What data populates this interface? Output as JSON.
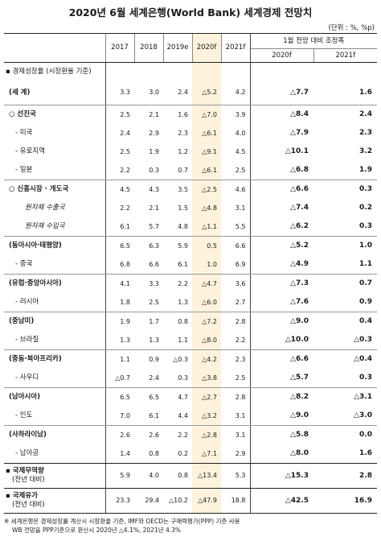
{
  "title": "2020년 6월 세계은행(World Bank) 세계경제 전망치",
  "unit": "(단위 : %, %p)",
  "headers": {
    "years": [
      "2017",
      "2018",
      "2019e",
      "2020f",
      "2021f"
    ],
    "adj_group": "1월 전망 대비 조정폭",
    "adj_years": [
      "2020f",
      "2021f"
    ]
  },
  "section_gdp": "▪ 경제성장률 (시장환율 기준)",
  "rows": [
    {
      "label": "(세  계)",
      "style": "bold",
      "values": [
        "3.3",
        "3.0",
        "2.4",
        "△5.2",
        "4.2"
      ],
      "adj": [
        "△7.7",
        "1.6"
      ]
    },
    {
      "label": "○ 선진국",
      "style": "bold",
      "values": [
        "2.5",
        "2.1",
        "1.6",
        "△7.0",
        "3.9"
      ],
      "adj": [
        "△8.4",
        "2.4"
      ]
    },
    {
      "label": "- 미국",
      "style": "sub",
      "values": [
        "2.4",
        "2.9",
        "2.3",
        "△6.1",
        "4.0"
      ],
      "adj": [
        "△7.9",
        "2.3"
      ]
    },
    {
      "label": "- 유로지역",
      "style": "sub",
      "values": [
        "2.5",
        "1.9",
        "1.2",
        "△9.1",
        "4.5"
      ],
      "adj": [
        "△10.1",
        "3.2"
      ]
    },
    {
      "label": "- 일본",
      "style": "sub",
      "values": [
        "2.2",
        "0.3",
        "0.7",
        "△6.1",
        "2.5"
      ],
      "adj": [
        "△6.8",
        "1.9"
      ]
    },
    {
      "label": "○ 신흥시장 · 개도국",
      "style": "bold",
      "values": [
        "4.5",
        "4.3",
        "3.5",
        "△2.5",
        "4.6"
      ],
      "adj": [
        "△6.6",
        "0.3"
      ]
    },
    {
      "label": "원자재 수출국",
      "style": "ital",
      "values": [
        "2.2",
        "2.1",
        "1.5",
        "△4.8",
        "3.1"
      ],
      "adj": [
        "△7.4",
        "0.2"
      ]
    },
    {
      "label": "원자재 수입국",
      "style": "ital",
      "values": [
        "6.1",
        "5.7",
        "4.8",
        "△1.1",
        "5.5"
      ],
      "adj": [
        "△6.2",
        "0.3"
      ]
    },
    {
      "label": "(동아시아·태평양)",
      "style": "bold",
      "values": [
        "6.5",
        "6.3",
        "5.9",
        "0.5",
        "6.6"
      ],
      "adj": [
        "△5.2",
        "1.0"
      ]
    },
    {
      "label": "- 중국",
      "style": "sub",
      "values": [
        "6.8",
        "6.6",
        "6.1",
        "1.0",
        "6.9"
      ],
      "adj": [
        "△4.9",
        "1.1"
      ]
    },
    {
      "label": "(유럽·중앙아시아)",
      "style": "bold",
      "values": [
        "4.1",
        "3.3",
        "2.2",
        "△4.7",
        "3.6"
      ],
      "adj": [
        "△7.3",
        "0.7"
      ]
    },
    {
      "label": "- 러시아",
      "style": "sub",
      "values": [
        "1.8",
        "2.5",
        "1.3",
        "△6.0",
        "2.7"
      ],
      "adj": [
        "△7.6",
        "0.9"
      ]
    },
    {
      "label": "(중남미)",
      "style": "bold",
      "values": [
        "1.9",
        "1.7",
        "0.8",
        "△7.2",
        "2.8"
      ],
      "adj": [
        "△9.0",
        "0.4"
      ]
    },
    {
      "label": "- 브라질",
      "style": "sub",
      "values": [
        "1.3",
        "1.3",
        "1.1",
        "△8.0",
        "2.2"
      ],
      "adj": [
        "△10.0",
        "△0.3"
      ]
    },
    {
      "label": "(중동·북아프리카)",
      "style": "bold",
      "values": [
        "1.1",
        "0.9",
        "△0.3",
        "△4.2",
        "2.3"
      ],
      "adj": [
        "△6.6",
        "△0.4"
      ]
    },
    {
      "label": "- 사우디",
      "style": "sub",
      "values": [
        "△0.7",
        "2.4",
        "0.3",
        "△3.8",
        "2.5"
      ],
      "adj": [
        "△5.7",
        "0.3"
      ]
    },
    {
      "label": "(남아시아)",
      "style": "bold",
      "values": [
        "6.5",
        "6.5",
        "4.7",
        "△2.7",
        "2.8"
      ],
      "adj": [
        "△8.2",
        "△3.1"
      ]
    },
    {
      "label": "- 인도",
      "style": "sub",
      "values": [
        "7.0",
        "6.1",
        "4.4",
        "△3.2",
        "3.1"
      ],
      "adj": [
        "△9.0",
        "△3.0"
      ]
    },
    {
      "label": "(사하라이남)",
      "style": "bold",
      "values": [
        "2.6",
        "2.6",
        "2.2",
        "△2.8",
        "3.1"
      ],
      "adj": [
        "△5.8",
        "0.0"
      ]
    },
    {
      "label": "- 남아공",
      "style": "sub",
      "values": [
        "1.4",
        "0.8",
        "0.2",
        "△7.1",
        "2.9"
      ],
      "adj": [
        "△8.0",
        "1.6"
      ]
    }
  ],
  "trade": {
    "label1": "▪ 국제무역량",
    "label2": "(전년 대비)",
    "values": [
      "5.9",
      "4.0",
      "0.8",
      "△13.4",
      "5.3"
    ],
    "adj": [
      "△15.3",
      "2.8"
    ]
  },
  "oil": {
    "label1": "▪ 국제유가",
    "label2": "(전년 대비)",
    "values": [
      "23.3",
      "29.4",
      "△10.2",
      "△47.9",
      "18.8"
    ],
    "adj": [
      "△42.5",
      "16.9"
    ]
  },
  "note_line1": "※ 세계은행은 경제성장률 계산시 시장환율 기준, IMF와 OECD는 구매력평가(PPP) 기준 사용",
  "note_line2": "WB 전망을 PPP기준으로 환산시 2020년 △4.1%, 2021년 4.3%"
}
